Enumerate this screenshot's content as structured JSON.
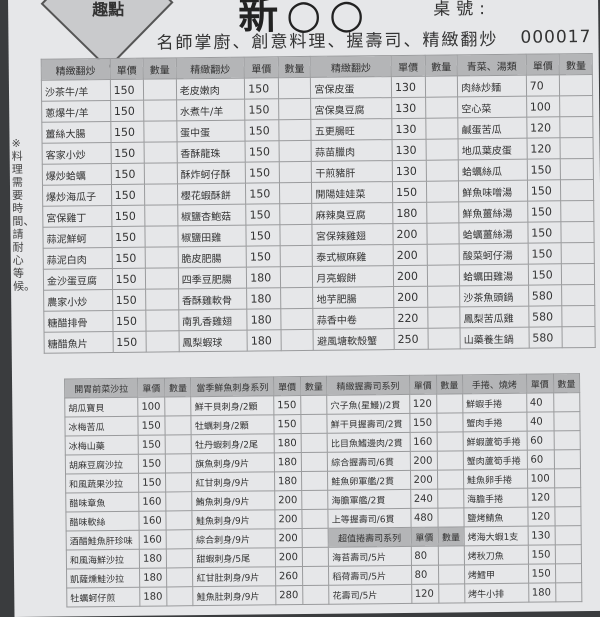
{
  "header": {
    "logo_text": "趣點",
    "title": "新○○",
    "table_label": "桌號:",
    "slogan": "名師掌廚、創意料理、握壽司、精緻翻炒",
    "order_number": "000017",
    "note": "※料理需要時間、請耐心等候。"
  },
  "colors": {
    "paper": "#e6e7e9",
    "header_bg": "#b4b5b7",
    "pen_mark": "#3d44b8"
  },
  "columns": {
    "price": "單價",
    "qty": "數量"
  },
  "top_sections": [
    {
      "title": "精緻翻炒",
      "items": [
        [
          "沙茶牛/羊",
          150,
          false
        ],
        [
          "蔥爆牛/羊",
          150,
          false
        ],
        [
          "薑絲大腸",
          150,
          false
        ],
        [
          "客家小炒",
          150,
          false
        ],
        [
          "爆炒蛤蠣",
          150,
          false
        ],
        [
          "爆炒海瓜子",
          150,
          false
        ],
        [
          "宮保雞丁",
          150,
          true
        ],
        [
          "蒜泥鮮蚵",
          150,
          false
        ],
        [
          "蒜泥白肉",
          150,
          false
        ],
        [
          "金沙蛋豆腐",
          150,
          true
        ],
        [
          "農家小炒",
          150,
          true
        ],
        [
          "糖醋排骨",
          150,
          false
        ],
        [
          "糖醋魚片",
          150,
          true
        ]
      ]
    },
    {
      "title": "精緻翻炒",
      "items": [
        [
          "老皮嫩肉",
          150,
          false
        ],
        [
          "水煮牛/羊",
          150,
          false
        ],
        [
          "蛋中蛋",
          150,
          false
        ],
        [
          "香酥龍珠",
          150,
          false
        ],
        [
          "酥炸蚵仔酥",
          150,
          false
        ],
        [
          "櫻花蝦酥餅",
          150,
          true
        ],
        [
          "椒鹽杏鮑菇",
          150,
          false
        ],
        [
          "椒鹽田雞",
          150,
          true
        ],
        [
          "脆皮肥腸",
          150,
          false
        ],
        [
          "四季豆肥腸",
          180,
          false
        ],
        [
          "香酥雞軟骨",
          180,
          true
        ],
        [
          "南乳香雞翅",
          180,
          true
        ],
        [
          "鳳梨蝦球",
          180,
          false
        ]
      ]
    },
    {
      "title": "精緻翻炒",
      "items": [
        [
          "宮保皮蛋",
          130,
          false
        ],
        [
          "宮保臭豆腐",
          130,
          true
        ],
        [
          "五更腸旺",
          130,
          false
        ],
        [
          "蒜苗臘肉",
          130,
          false
        ],
        [
          "干煎豬肝",
          130,
          false
        ],
        [
          "開陽娃娃菜",
          150,
          true
        ],
        [
          "麻辣臭豆腐",
          180,
          true
        ],
        [
          "宮保辣雞翅",
          200,
          true
        ],
        [
          "泰式椒麻雞",
          200,
          true
        ],
        [
          "月亮蝦餅",
          200,
          false
        ],
        [
          "地芋肥腸",
          200,
          true
        ],
        [
          "蒜香中卷",
          220,
          true
        ],
        [
          "避風塘軟殼蟹",
          250,
          true
        ]
      ]
    },
    {
      "title": "青菜、湯類",
      "items": [
        [
          "肉絲炒麵",
          70,
          false
        ],
        [
          "空心菜",
          100,
          false
        ],
        [
          "鹹蛋苦瓜",
          120,
          false
        ],
        [
          "地瓜葉皮蛋",
          120,
          true
        ],
        [
          "蛤蠣絲瓜",
          150,
          false
        ],
        [
          "鮮魚味噌湯",
          150,
          false
        ],
        [
          "鮮魚薑絲湯",
          150,
          false
        ],
        [
          "蛤蠣薑絲湯",
          150,
          false
        ],
        [
          "酸菜蚵仔湯",
          150,
          false
        ],
        [
          "蛤蠣田雞湯",
          150,
          false
        ],
        [
          "沙茶魚頭鍋",
          580,
          false
        ],
        [
          "鳳梨苦瓜雞",
          580,
          false
        ],
        [
          "山藥養生鍋",
          580,
          false
        ]
      ]
    }
  ],
  "bottom_sections": [
    {
      "title": "開胃前菜沙拉",
      "items": [
        [
          "胡瓜寶貝",
          100,
          true
        ],
        [
          "冰梅苦瓜",
          150,
          true
        ],
        [
          "冰梅山藥",
          150,
          false
        ],
        [
          "胡麻豆腐沙拉",
          150,
          true
        ],
        [
          "和風蔬果沙拉",
          150,
          false
        ],
        [
          "醋味章魚",
          160,
          false
        ],
        [
          "醋味軟絲",
          160,
          false
        ],
        [
          "酒醋鮭魚肝珍味",
          160,
          false
        ],
        [
          "和風海鮮沙拉",
          180,
          true
        ],
        [
          "凱薩燻鮭沙拉",
          180,
          false
        ],
        [
          "牡蠣蚵仔煎",
          180,
          true
        ]
      ]
    },
    {
      "title": "當季鮮魚刺身系列",
      "items": [
        [
          "鮮干貝刺身/2顆",
          150,
          false
        ],
        [
          "牡蠣刺身/2顆",
          150,
          false
        ],
        [
          "牡丹蝦刺身/2尾",
          180,
          false
        ],
        [
          "旗魚刺身/9片",
          180,
          false
        ],
        [
          "紅甘刺身/9片",
          180,
          false
        ],
        [
          "鮪魚刺身/9片",
          200,
          false
        ],
        [
          "鮭魚刺身/9片",
          200,
          false
        ],
        [
          "綜合刺身/9片",
          200,
          false
        ],
        [
          "甜蝦刺身/5尾",
          200,
          false
        ],
        [
          "紅甘肚刺身/9片",
          260,
          true
        ],
        [
          "鮭魚肚刺身/9片",
          280,
          false
        ]
      ]
    },
    {
      "title": "精緻握壽司系列",
      "items": [
        [
          "穴子魚(星鰻)/2貫",
          120,
          false
        ],
        [
          "鮮干貝握壽司/2貫",
          150,
          true
        ],
        [
          "比目魚鰭邊肉/2貫",
          160,
          true
        ],
        [
          "綜合握壽司/6貫",
          200,
          false
        ],
        [
          "鮭魚卵軍艦/2貫",
          200,
          false
        ],
        [
          "海膽軍艦/2貫",
          240,
          false
        ],
        [
          "上等握壽司/6貫",
          480,
          true
        ],
        [
          "超值捲壽司系列",
          "單價",
          "數量"
        ],
        [
          "海苔壽司/5片",
          80,
          false
        ],
        [
          "稻荷壽司/5片",
          80,
          false
        ],
        [
          "花壽司/5片",
          120,
          false
        ]
      ]
    },
    {
      "title": "手捲、燒烤",
      "items": [
        [
          "鮮蝦手捲",
          40,
          false
        ],
        [
          "蟹肉手捲",
          40,
          false
        ],
        [
          "鮮蝦蘆筍手捲",
          60,
          false
        ],
        [
          "蟹肉蘆筍手捲",
          60,
          false
        ],
        [
          "鮭魚卵手捲",
          100,
          false
        ],
        [
          "海膽手捲",
          120,
          false
        ],
        [
          "鹽烤鯖魚",
          120,
          false
        ],
        [
          "烤海大蝦1支",
          130,
          false
        ],
        [
          "烤秋刀魚",
          150,
          false
        ],
        [
          "烤鱈甲",
          150,
          false
        ],
        [
          "烤牛小排",
          180,
          false
        ]
      ]
    }
  ]
}
